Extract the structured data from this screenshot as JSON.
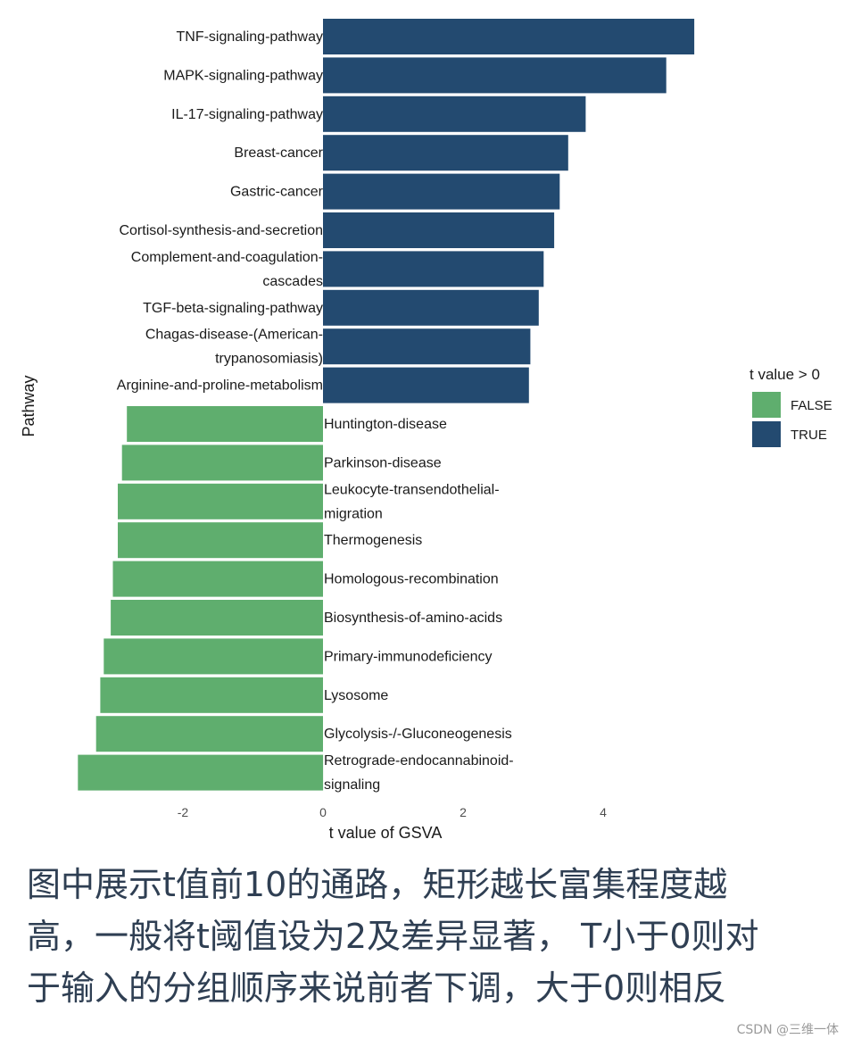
{
  "chart_data": {
    "type": "bar",
    "orientation": "horizontal",
    "xlabel": "t value of GSVA",
    "ylabel": "Pathway",
    "xlim": [
      -3.55,
      5.6
    ],
    "xticks": [
      "-2",
      "0",
      "2",
      "4"
    ],
    "xtick_values": [
      -2,
      0,
      2,
      4
    ],
    "legend": {
      "title": "t value > 0",
      "position": "right",
      "items": [
        {
          "label": "FALSE",
          "color": "#5fae6e"
        },
        {
          "label": "TRUE",
          "color": "#234a70"
        }
      ]
    },
    "categories": [
      [
        "TNF-signaling-pathway"
      ],
      [
        "MAPK-signaling-pathway"
      ],
      [
        "IL-17-signaling-pathway"
      ],
      [
        "Breast-cancer"
      ],
      [
        "Gastric-cancer"
      ],
      [
        "Cortisol-synthesis-and-secretion"
      ],
      [
        "Complement-and-coagulation-",
        "cascades"
      ],
      [
        "TGF-beta-signaling-pathway"
      ],
      [
        "Chagas-disease-(American-",
        "trypanosomiasis)"
      ],
      [
        "Arginine-and-proline-metabolism"
      ],
      [
        "Huntington-disease"
      ],
      [
        "Parkinson-disease"
      ],
      [
        "Leukocyte-transendothelial-",
        "migration"
      ],
      [
        "Thermogenesis"
      ],
      [
        "Homologous-recombination"
      ],
      [
        "Biosynthesis-of-amino-acids"
      ],
      [
        "Primary-immunodeficiency"
      ],
      [
        "Lysosome"
      ],
      [
        "Glycolysis-/-Gluconeogenesis"
      ],
      [
        "Retrograde-endocannabinoid-",
        "signaling"
      ]
    ],
    "values": [
      5.3,
      4.9,
      3.75,
      3.5,
      3.38,
      3.3,
      3.15,
      3.08,
      2.96,
      2.94,
      -2.8,
      -2.87,
      -2.93,
      -2.93,
      -3.0,
      -3.03,
      -3.13,
      -3.18,
      -3.24,
      -3.5
    ],
    "groups": [
      "TRUE",
      "TRUE",
      "TRUE",
      "TRUE",
      "TRUE",
      "TRUE",
      "TRUE",
      "TRUE",
      "TRUE",
      "TRUE",
      "FALSE",
      "FALSE",
      "FALSE",
      "FALSE",
      "FALSE",
      "FALSE",
      "FALSE",
      "FALSE",
      "FALSE",
      "FALSE"
    ]
  },
  "caption": {
    "lines": [
      "图中展示t值前10的通路，矩形越长富集程度越",
      "高，一般将t阈值设为2及差异显著， T小于0则对",
      "于输入的分组顺序来说前者下调，大于0则相反"
    ],
    "color": "#2f3f53"
  },
  "watermark": "CSDN @三维一体"
}
